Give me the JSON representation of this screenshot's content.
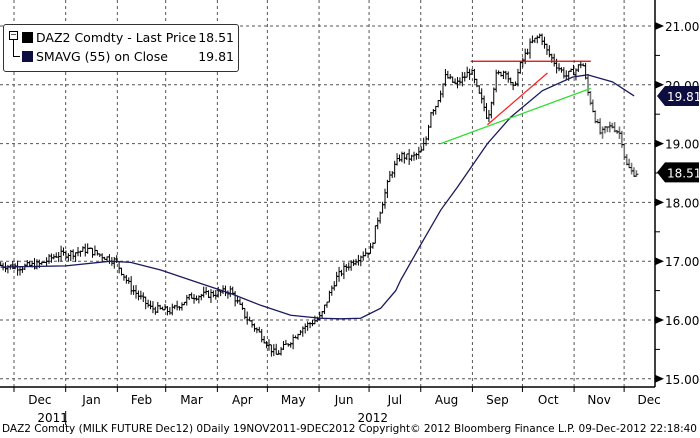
{
  "chart_data": {
    "type": "line",
    "title": "DAZ2 Comdty (MILK FUTURE Dec12)",
    "x_unit": "days since 2011-12-01",
    "ylim": [
      15.0,
      21.0
    ],
    "y_ticks": [
      "21.00",
      "20.00",
      "19.00",
      "18.00",
      "17.00",
      "16.00",
      "15.00"
    ],
    "y_tick_values": [
      21,
      20,
      19,
      18,
      17,
      16,
      15
    ],
    "month_ticks": [
      {
        "label": "Dec",
        "day": 0
      },
      {
        "label": "Jan",
        "day": 31
      },
      {
        "label": "Feb",
        "day": 62
      },
      {
        "label": "Mar",
        "day": 91
      },
      {
        "label": "Apr",
        "day": 122
      },
      {
        "label": "May",
        "day": 152
      },
      {
        "label": "Jun",
        "day": 183
      },
      {
        "label": "Jul",
        "day": 213
      },
      {
        "label": "Aug",
        "day": 244
      },
      {
        "label": "Sep",
        "day": 275
      },
      {
        "label": "Oct",
        "day": 305
      },
      {
        "label": "Nov",
        "day": 336
      },
      {
        "label": "Dec",
        "day": 366
      }
    ],
    "years": [
      {
        "label": "2011",
        "day": 16
      },
      {
        "label": "2012",
        "day": 208
      }
    ],
    "grid": true,
    "legend_position": "top-left",
    "series": [
      {
        "name": "DAZ2 Comdty - Last Price",
        "last": "18.51",
        "color": "#000000",
        "style": "ohlc",
        "points": [
          [
            -8,
            16.93
          ],
          [
            4,
            16.9
          ],
          [
            16,
            16.95
          ],
          [
            25,
            17.1
          ],
          [
            37,
            17.15
          ],
          [
            44,
            17.2
          ],
          [
            52,
            17.1
          ],
          [
            61,
            17.0
          ],
          [
            70,
            16.55
          ],
          [
            82,
            16.2
          ],
          [
            94,
            16.15
          ],
          [
            106,
            16.4
          ],
          [
            121,
            16.45
          ],
          [
            130,
            16.5
          ],
          [
            139,
            16.05
          ],
          [
            148,
            15.75
          ],
          [
            157,
            15.4
          ],
          [
            166,
            15.65
          ],
          [
            172,
            15.85
          ],
          [
            178,
            15.95
          ],
          [
            184,
            16.05
          ],
          [
            190,
            16.5
          ],
          [
            193,
            16.7
          ],
          [
            199,
            16.9
          ],
          [
            208,
            17.1
          ],
          [
            214,
            17.2
          ],
          [
            218,
            17.7
          ],
          [
            226,
            18.5
          ],
          [
            232,
            18.8
          ],
          [
            238,
            18.75
          ],
          [
            244,
            18.85
          ],
          [
            247,
            19.05
          ],
          [
            250,
            19.55
          ],
          [
            253,
            19.65
          ],
          [
            259,
            20.15
          ],
          [
            265,
            20.0
          ],
          [
            269,
            20.1
          ],
          [
            274,
            20.25
          ],
          [
            278,
            19.9
          ],
          [
            283,
            19.55
          ],
          [
            284,
            19.4
          ],
          [
            289,
            20.15
          ],
          [
            295,
            20.25
          ],
          [
            299,
            19.9
          ],
          [
            304,
            20.35
          ],
          [
            310,
            20.7
          ],
          [
            316,
            20.85
          ],
          [
            319,
            20.6
          ],
          [
            325,
            20.35
          ],
          [
            331,
            20.15
          ],
          [
            337,
            20.25
          ],
          [
            341,
            20.4
          ],
          [
            344,
            19.9
          ],
          [
            349,
            19.4
          ],
          [
            352,
            19.15
          ],
          [
            355,
            19.25
          ],
          [
            359,
            19.3
          ],
          [
            364,
            19.15
          ],
          [
            367,
            18.65
          ],
          [
            371,
            18.5
          ],
          [
            374,
            18.51
          ]
        ]
      },
      {
        "name": "SMAVG (55) on Close",
        "last": "19.81",
        "color": "#1a1a5e",
        "style": "line",
        "points": [
          [
            -8,
            16.9
          ],
          [
            31,
            16.92
          ],
          [
            58,
            17.0
          ],
          [
            70,
            16.98
          ],
          [
            88,
            16.85
          ],
          [
            112,
            16.62
          ],
          [
            130,
            16.45
          ],
          [
            148,
            16.25
          ],
          [
            166,
            16.08
          ],
          [
            184,
            16.03
          ],
          [
            196,
            16.02
          ],
          [
            208,
            16.03
          ],
          [
            220,
            16.2
          ],
          [
            229,
            16.5
          ],
          [
            232,
            16.68
          ],
          [
            244,
            17.28
          ],
          [
            256,
            17.87
          ],
          [
            266,
            18.26
          ],
          [
            284,
            19.0
          ],
          [
            298,
            19.45
          ],
          [
            317,
            19.9
          ],
          [
            335,
            20.13
          ],
          [
            344,
            20.17
          ],
          [
            359,
            20.05
          ],
          [
            372,
            19.81
          ]
        ]
      }
    ],
    "annotations": [
      {
        "type": "trendline",
        "color": "#e00000",
        "from": [
          274,
          20.4
        ],
        "to": [
          346,
          20.4
        ]
      },
      {
        "type": "trendline",
        "color": "#ff2020",
        "from": [
          284,
          19.32
        ],
        "to": [
          320,
          20.2
        ]
      },
      {
        "type": "trendline",
        "color": "#33dd33",
        "from": [
          256,
          19.0
        ],
        "to": [
          346,
          19.94
        ]
      }
    ],
    "price_badges": [
      {
        "label": "19.81",
        "value": 19.81,
        "color": "#0d0d40"
      },
      {
        "label": "18.51",
        "value": 18.51,
        "color": "#000000"
      }
    ]
  },
  "footer": {
    "left": "DAZ2 Comdty (MILK FUTURE",
    "right": "Dec12) 0Daily 19NOV2011-9DEC2012 Copyright© 2012 Bloomberg Finance L.P. 09-Dec-2012 22:18:40"
  }
}
